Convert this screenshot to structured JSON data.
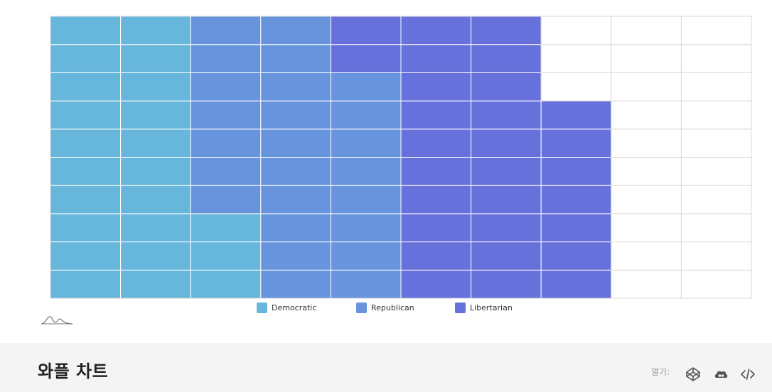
{
  "chart_data": {
    "type": "waffle",
    "grid": {
      "rows": 10,
      "columns": 10,
      "fill_order": "column-major, bottom-to-top"
    },
    "series": [
      {
        "name": "Democratic",
        "value": 23,
        "color": "#67b7dc"
      },
      {
        "name": "Republican",
        "value": 25,
        "color": "#6794dc"
      },
      {
        "name": "Libertarian",
        "value": 29,
        "color": "#6771dc"
      }
    ],
    "empty_color": "#ffffff",
    "gridline_color": "#d9d9d9",
    "legend_position": "bottom-center"
  },
  "footer": {
    "title": "와플 차트",
    "open_label": "열기:",
    "icons": [
      "codepen-icon",
      "codesandbox-icon",
      "code-icon"
    ]
  }
}
